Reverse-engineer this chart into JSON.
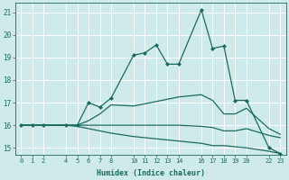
{
  "xlabel": "Humidex (Indice chaleur)",
  "background_color": "#ceeaea",
  "grid_color": "#b0d8d8",
  "line_color": "#1a6b5e",
  "xlim": [
    -0.5,
    23.5
  ],
  "ylim": [
    14.7,
    21.4
  ],
  "yticks": [
    15,
    16,
    17,
    18,
    19,
    20,
    21
  ],
  "xticks": [
    0,
    1,
    2,
    4,
    5,
    6,
    7,
    8,
    10,
    11,
    12,
    13,
    14,
    16,
    17,
    18,
    19,
    20,
    22,
    23
  ],
  "lines": [
    {
      "x": [
        0,
        1,
        2,
        4,
        5,
        6,
        7,
        8,
        10,
        11,
        12,
        13,
        14,
        16,
        17,
        18,
        19,
        20,
        22,
        23
      ],
      "y": [
        16,
        16,
        16,
        16,
        16,
        17.0,
        16.8,
        17.2,
        19.1,
        19.2,
        19.55,
        18.7,
        18.7,
        21.1,
        19.4,
        19.5,
        17.1,
        17.1,
        15.0,
        14.75
      ],
      "marker": "D",
      "markersize": 2.0,
      "linewidth": 0.9
    },
    {
      "x": [
        0,
        1,
        2,
        4,
        5,
        6,
        7,
        8,
        10,
        11,
        12,
        13,
        14,
        16,
        17,
        18,
        19,
        20,
        22,
        23
      ],
      "y": [
        16,
        16,
        16,
        16,
        16,
        16.2,
        16.5,
        16.9,
        16.85,
        16.95,
        17.05,
        17.15,
        17.25,
        17.35,
        17.1,
        16.5,
        16.5,
        16.75,
        15.85,
        15.6
      ],
      "marker": null,
      "markersize": 0,
      "linewidth": 0.9
    },
    {
      "x": [
        0,
        1,
        2,
        4,
        5,
        6,
        7,
        8,
        10,
        11,
        12,
        13,
        14,
        16,
        17,
        18,
        19,
        20,
        22,
        23
      ],
      "y": [
        16,
        16,
        16,
        16,
        16,
        16.0,
        16.0,
        16.0,
        16.0,
        16.0,
        16.0,
        16.0,
        16.0,
        15.95,
        15.9,
        15.75,
        15.75,
        15.85,
        15.55,
        15.45
      ],
      "marker": null,
      "markersize": 0,
      "linewidth": 0.9
    },
    {
      "x": [
        0,
        1,
        2,
        4,
        5,
        6,
        7,
        8,
        10,
        11,
        12,
        13,
        14,
        16,
        17,
        18,
        19,
        20,
        22,
        23
      ],
      "y": [
        16,
        16,
        16,
        16,
        15.95,
        15.85,
        15.75,
        15.65,
        15.5,
        15.45,
        15.4,
        15.35,
        15.3,
        15.2,
        15.1,
        15.1,
        15.05,
        15.0,
        14.85,
        14.75
      ],
      "marker": null,
      "markersize": 0,
      "linewidth": 0.9
    }
  ]
}
